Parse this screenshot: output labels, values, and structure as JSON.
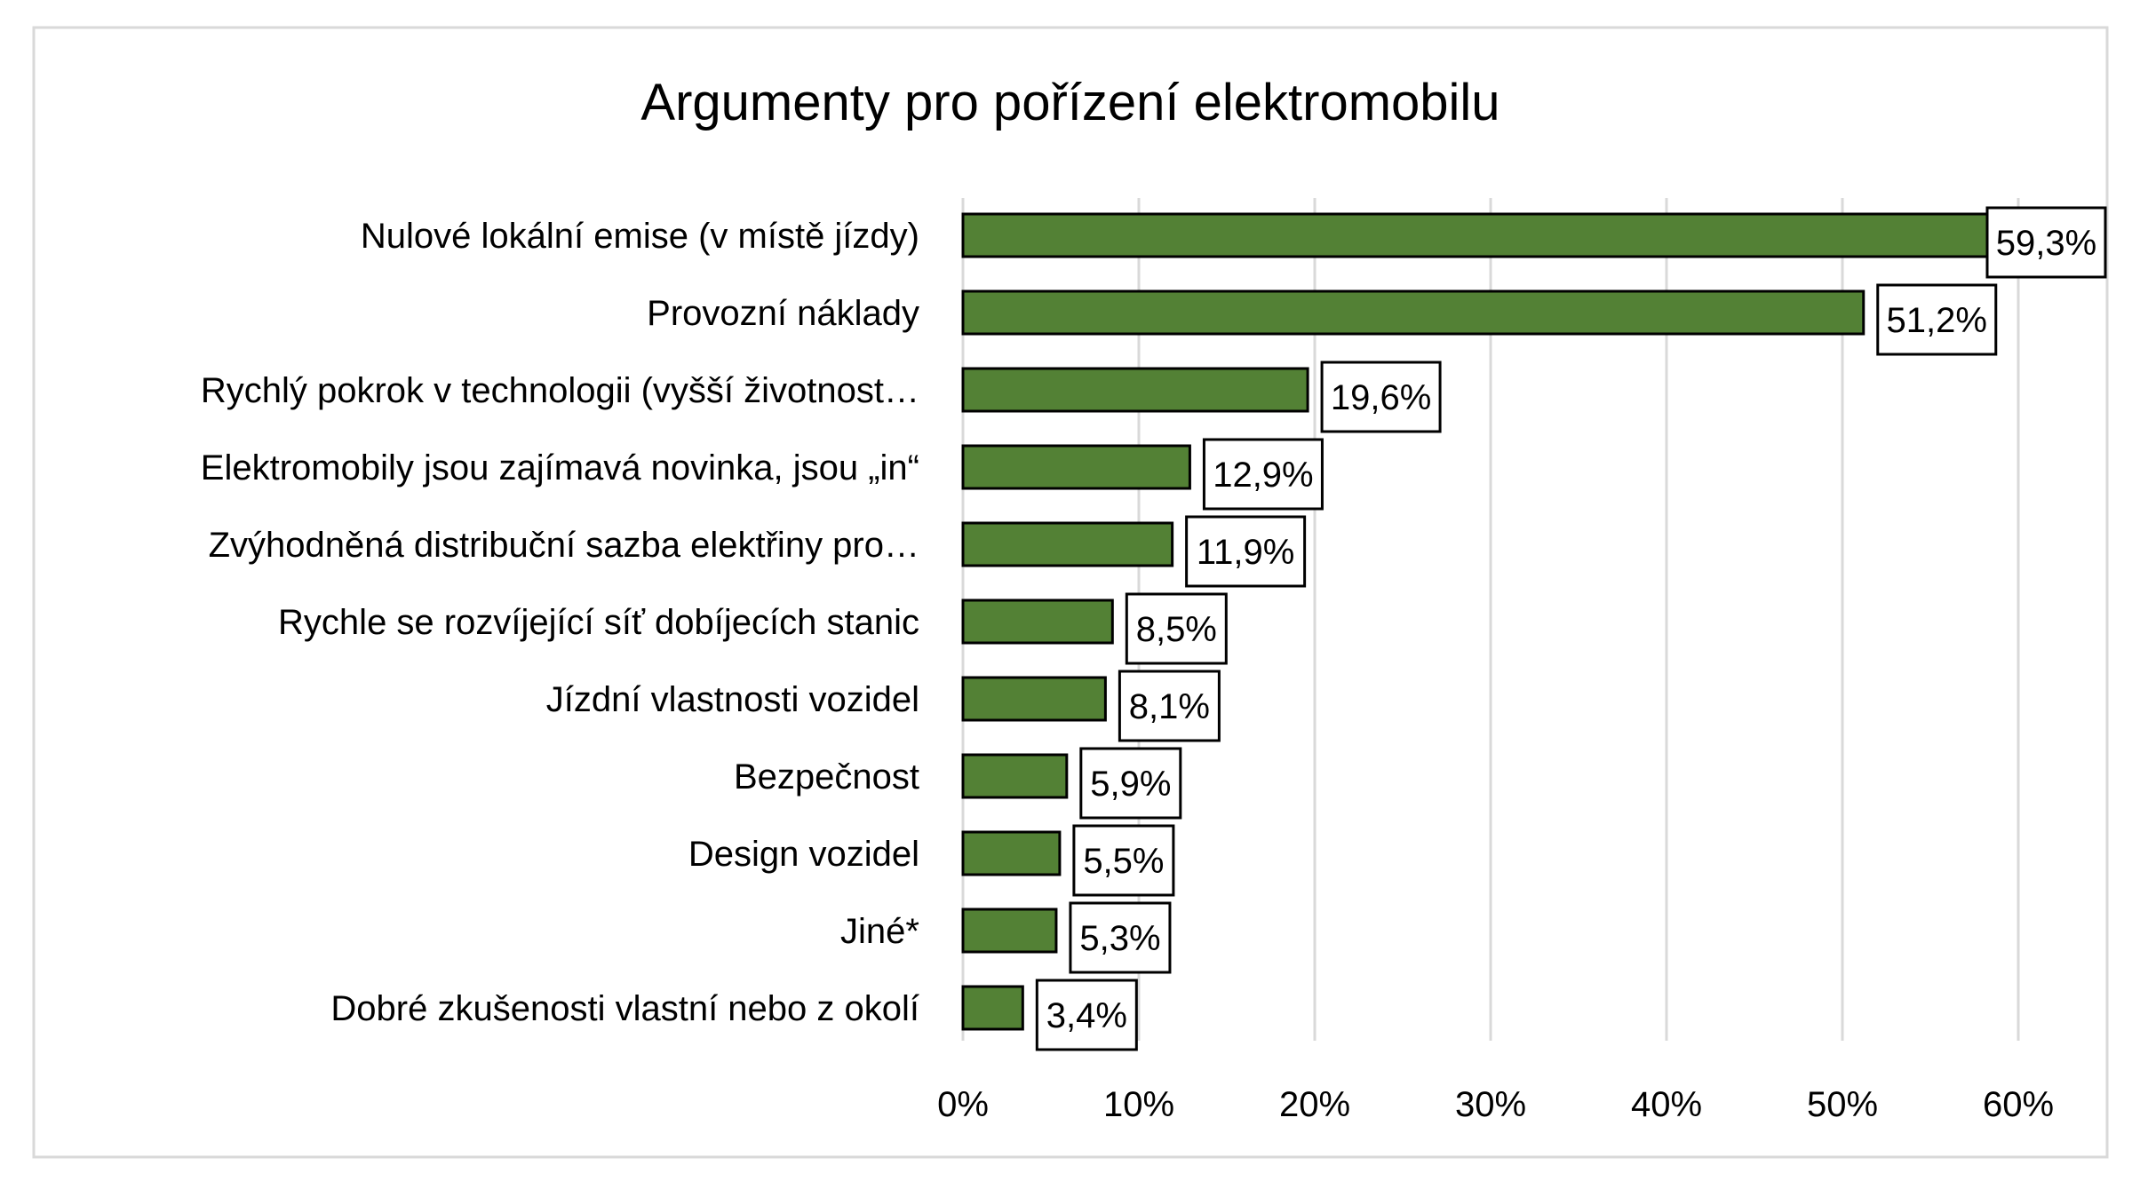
{
  "chart_data": {
    "type": "bar",
    "orientation": "horizontal",
    "title": "Argumenty pro pořízení elektromobilu",
    "xlabel": "",
    "ylabel": "",
    "categories": [
      "Nulové lokální emise (v místě jízdy)",
      "Provozní náklady",
      "Rychlý pokrok v technologii (vyšší životnost…",
      "Elektromobily jsou zajímavá novinka, jsou „in“",
      "Zvýhodněná distribuční sazba elektřiny pro…",
      "Rychle se rozvíjející síť dobíjecích stanic",
      "Jízdní vlastnosti vozidel",
      "Bezpečnost",
      "Design vozidel",
      "Jiné*",
      "Dobré zkušenosti vlastní nebo z okolí"
    ],
    "values": [
      59.3,
      51.2,
      19.6,
      12.9,
      11.9,
      8.5,
      8.1,
      5.9,
      5.5,
      5.3,
      3.4
    ],
    "data_labels": [
      "59,3%",
      "51,2%",
      "19,6%",
      "12,9%",
      "11,9%",
      "8,5%",
      "8,1%",
      "5,9%",
      "5,5%",
      "5,3%",
      "3,4%"
    ],
    "xlim": [
      0,
      60
    ],
    "x_ticks": [
      0,
      10,
      20,
      30,
      40,
      50,
      60
    ],
    "x_tick_labels": [
      "0%",
      "10%",
      "20%",
      "30%",
      "40%",
      "50%",
      "60%"
    ],
    "grid": "vertical",
    "legend": "none",
    "colors": {
      "bar": "#538135",
      "bar_outline": "#000000",
      "grid": "#d9d9d9",
      "frame": "#d9d9d9"
    }
  }
}
